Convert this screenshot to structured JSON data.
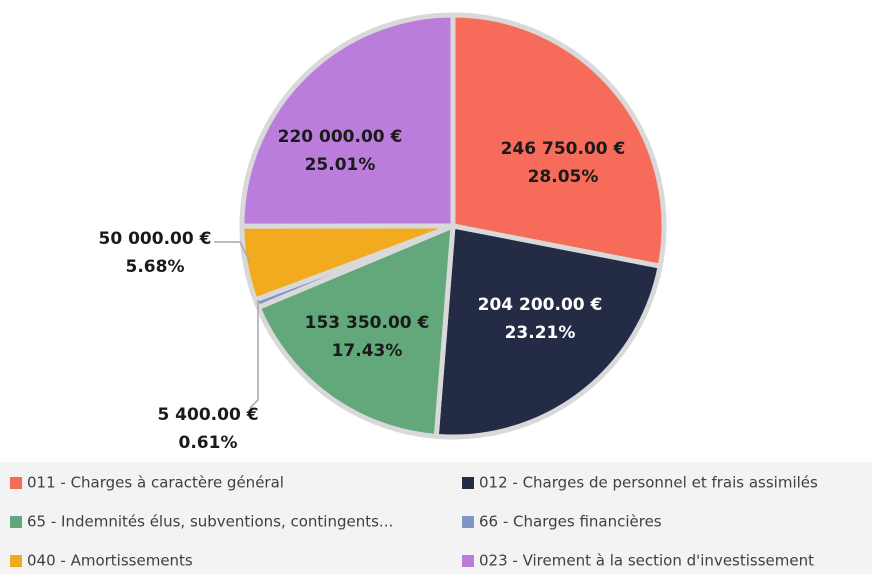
{
  "chart_data": {
    "type": "pie",
    "categories": [
      "011 - Charges à caractère général",
      "012 - Charges de personnel et frais assimilés",
      "65 - Indemnités élus, subventions, contingents...",
      "66 - Charges financières",
      "040 - Amortissements",
      "023 - Virement à la section d'investissement"
    ],
    "values": [
      246750,
      204200,
      153350,
      5400,
      50000,
      220000
    ],
    "value_labels": [
      "246 750.00 €",
      "204 200.00 €",
      "153 350.00 €",
      "5 400.00 €",
      "50 000.00 €",
      "220 000.00 €"
    ],
    "percentages": [
      28.05,
      23.21,
      17.43,
      0.61,
      5.68,
      25.01
    ],
    "percentage_labels": [
      "28.05%",
      "23.21%",
      "17.43%",
      "0.61%",
      "5.68%",
      "25.01%"
    ],
    "colors": [
      "#f76b5b",
      "#232b45",
      "#63a87b",
      "#7f95c4",
      "#f2ab1e",
      "#bb7ddb"
    ],
    "legend": "bottom"
  }
}
